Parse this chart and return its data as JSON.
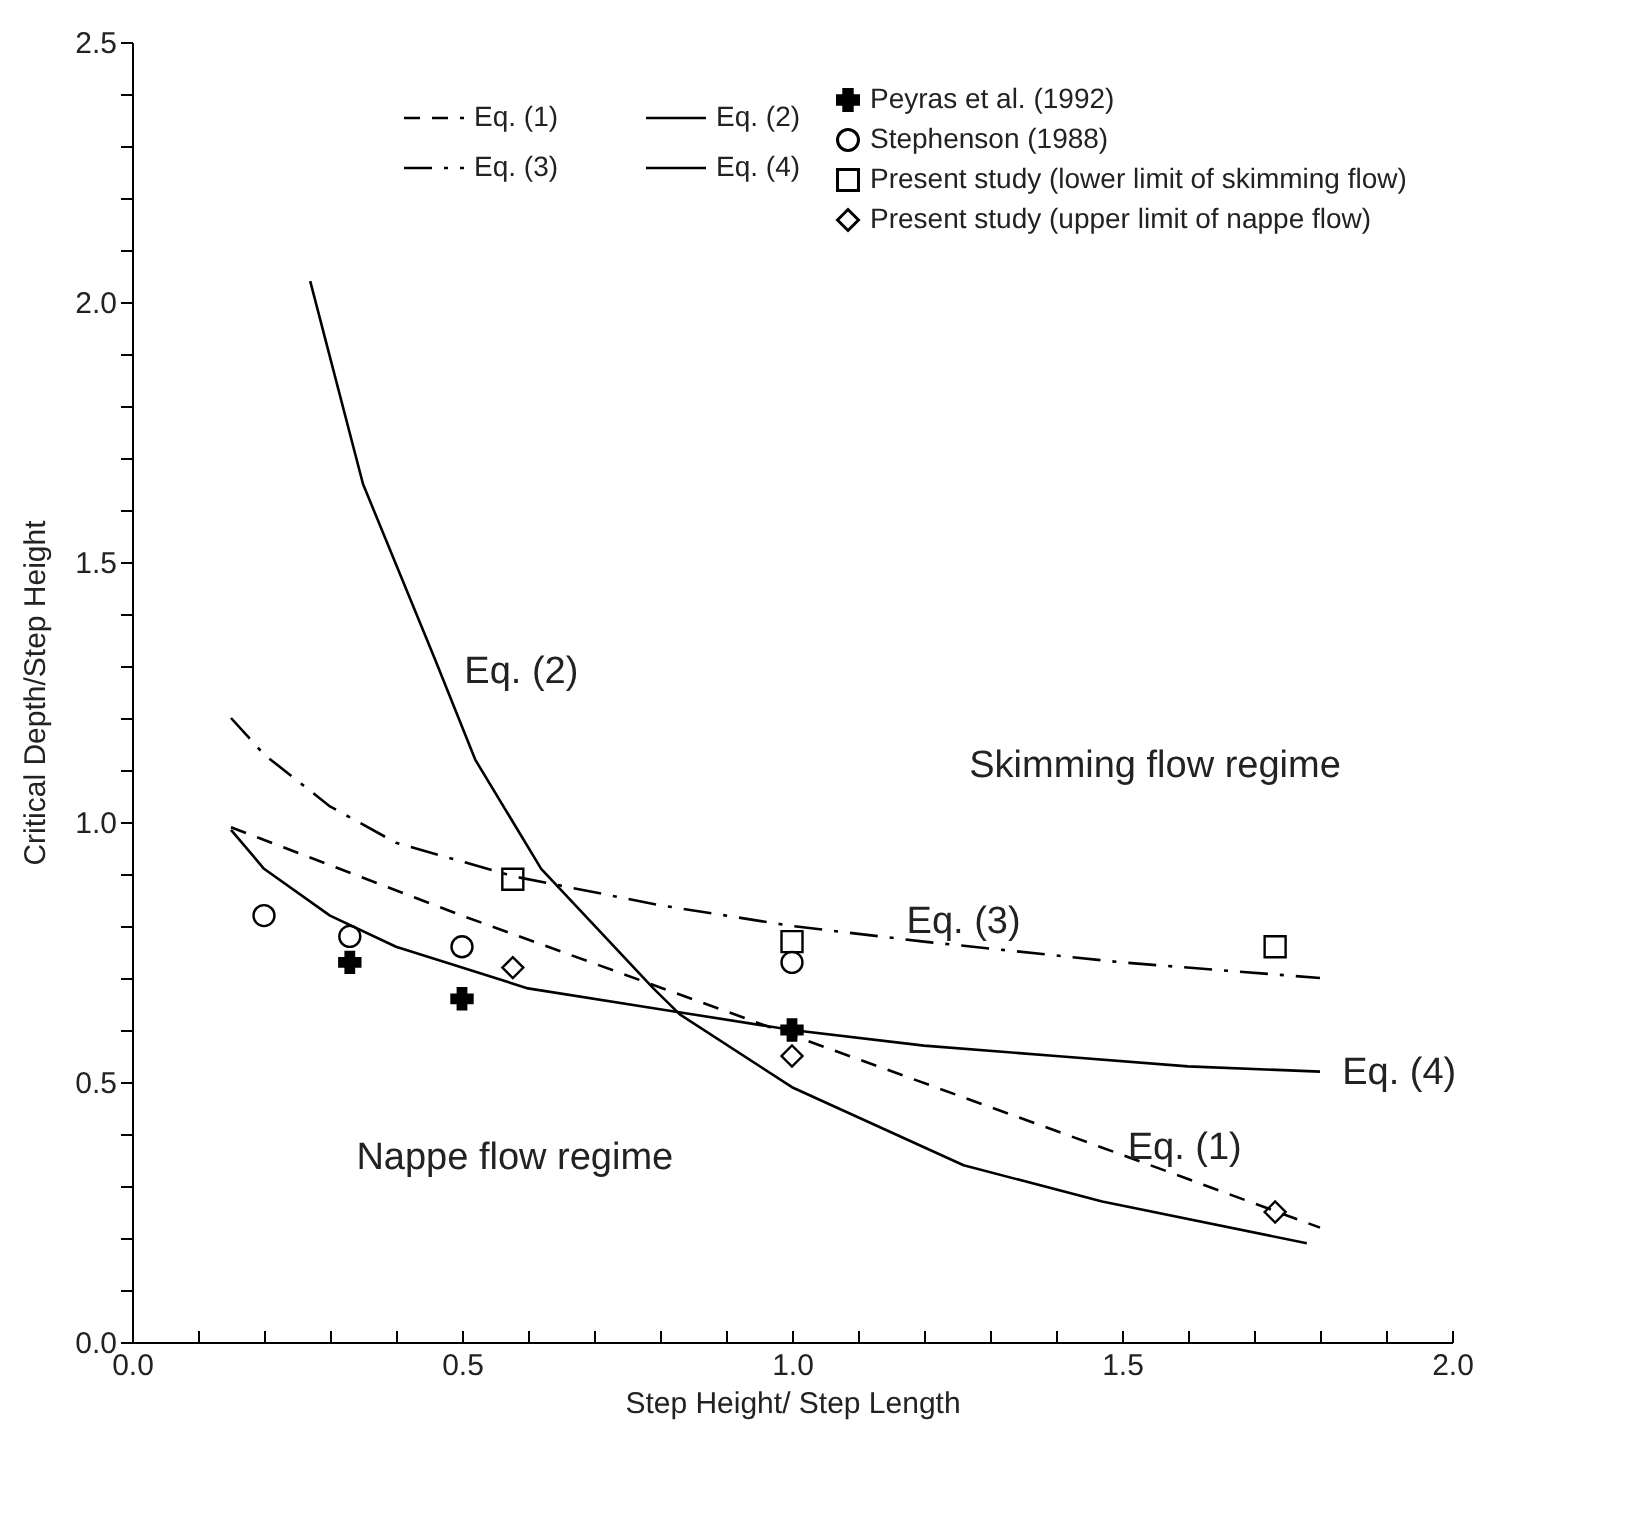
{
  "chart_data": {
    "type": "scatter",
    "xlabel": "Step Height/ Step Length",
    "ylabel": "Critical Depth/Step Height",
    "xlim": [
      0,
      2
    ],
    "ylim": [
      0,
      2.5
    ],
    "xticks": [
      {
        "value": 0,
        "label": "0.0"
      },
      {
        "value": 0.1,
        "label": null
      },
      {
        "value": 0.2,
        "label": null
      },
      {
        "value": 0.3,
        "label": null
      },
      {
        "value": 0.4,
        "label": null
      },
      {
        "value": 0.5,
        "label": "0.5"
      },
      {
        "value": 0.6,
        "label": null
      },
      {
        "value": 0.7,
        "label": null
      },
      {
        "value": 0.8,
        "label": null
      },
      {
        "value": 0.9,
        "label": null
      },
      {
        "value": 1,
        "label": "1.0"
      },
      {
        "value": 1.1,
        "label": null
      },
      {
        "value": 1.2,
        "label": null
      },
      {
        "value": 1.3,
        "label": null
      },
      {
        "value": 1.4,
        "label": null
      },
      {
        "value": 1.5,
        "label": "1.5"
      },
      {
        "value": 1.6,
        "label": null
      },
      {
        "value": 1.7,
        "label": null
      },
      {
        "value": 1.8,
        "label": null
      },
      {
        "value": 1.9,
        "label": null
      },
      {
        "value": 2,
        "label": "2.0"
      }
    ],
    "yticks": [
      {
        "value": 0,
        "label": "0.0"
      },
      {
        "value": 0.1,
        "label": null
      },
      {
        "value": 0.2,
        "label": null
      },
      {
        "value": 0.3,
        "label": null
      },
      {
        "value": 0.4,
        "label": null
      },
      {
        "value": 0.5,
        "label": "0.5"
      },
      {
        "value": 0.6,
        "label": null
      },
      {
        "value": 0.7,
        "label": null
      },
      {
        "value": 0.8,
        "label": null
      },
      {
        "value": 0.9,
        "label": null
      },
      {
        "value": 1,
        "label": "1.0"
      },
      {
        "value": 1.1,
        "label": null
      },
      {
        "value": 1.2,
        "label": null
      },
      {
        "value": 1.3,
        "label": null
      },
      {
        "value": 1.4,
        "label": null
      },
      {
        "value": 1.5,
        "label": "1.5"
      },
      {
        "value": 1.6,
        "label": null
      },
      {
        "value": 1.7,
        "label": null
      },
      {
        "value": 1.8,
        "label": null
      },
      {
        "value": 1.9,
        "label": null
      },
      {
        "value": 2,
        "label": "2.0"
      },
      {
        "value": 2.1,
        "label": null
      },
      {
        "value": 2.2,
        "label": null
      },
      {
        "value": 2.3,
        "label": null
      },
      {
        "value": 2.4,
        "label": null
      },
      {
        "value": 2.5,
        "label": "2.5"
      }
    ],
    "legend": "top right",
    "series": [
      {
        "name": "Peyras et al. (1992)",
        "marker": "cross",
        "color": "#000000",
        "x": [
          0.33,
          0.5,
          1.0
        ],
        "values": [
          0.73,
          0.66,
          0.6
        ]
      },
      {
        "name": "Stephenson (1988)",
        "marker": "circle",
        "color": "#000000",
        "x": [
          0.2,
          0.33,
          0.5,
          1.0
        ],
        "values": [
          0.82,
          0.78,
          0.76,
          0.73
        ]
      },
      {
        "name": "Present study (lower limit of skimming flow)",
        "marker": "square",
        "color": "#000000",
        "x": [
          0.577,
          1.0,
          1.732
        ],
        "values": [
          0.89,
          0.77,
          0.76
        ]
      },
      {
        "name": "Present study (upper limit of nappe flow)",
        "marker": "diamond",
        "color": "#000000",
        "x": [
          0.577,
          1.0,
          1.732
        ],
        "values": [
          0.72,
          0.55,
          0.25
        ]
      },
      {
        "name": "Eq. (1)",
        "type": "line",
        "line_style": "dashed",
        "color": "#000000",
        "x": [
          0.15,
          0.5,
          1.0,
          1.5,
          1.8
        ],
        "values": [
          0.99,
          0.82,
          0.59,
          0.36,
          0.22
        ]
      },
      {
        "name": "Eq. (3)",
        "type": "line",
        "line_style": "dashdot",
        "color": "#000000",
        "x": [
          0.15,
          0.2,
          0.3,
          0.4,
          0.58,
          0.8,
          1.0,
          1.2,
          1.5,
          1.8
        ],
        "values": [
          1.2,
          1.13,
          1.03,
          0.96,
          0.895,
          0.84,
          0.8,
          0.77,
          0.73,
          0.7
        ]
      },
      {
        "name": "Eq. (2)",
        "type": "line",
        "line_style": "solid",
        "color": "#000000",
        "x": [
          0.27,
          0.35,
          0.46,
          0.52,
          0.62,
          0.79,
          0.83,
          1.0,
          1.26,
          1.47,
          1.78
        ],
        "values": [
          2.04,
          1.65,
          1.31,
          1.12,
          0.91,
          0.68,
          0.63,
          0.49,
          0.34,
          0.27,
          0.19
        ]
      },
      {
        "name": "Eq. (4)",
        "type": "line",
        "line_style": "solid",
        "color": "#000000",
        "x": [
          0.15,
          0.2,
          0.3,
          0.4,
          0.5,
          0.6,
          0.8,
          1.0,
          1.2,
          1.4,
          1.6,
          1.8
        ],
        "values": [
          0.985,
          0.91,
          0.82,
          0.76,
          0.72,
          0.68,
          0.64,
          0.6,
          0.57,
          0.55,
          0.53,
          0.52
        ]
      }
    ],
    "annotations": [
      "Eq. (2)",
      "Skimming flow regime",
      "Eq. (3)",
      "Eq. (4)",
      "Eq. (1)",
      "Nappe flow regime"
    ]
  }
}
